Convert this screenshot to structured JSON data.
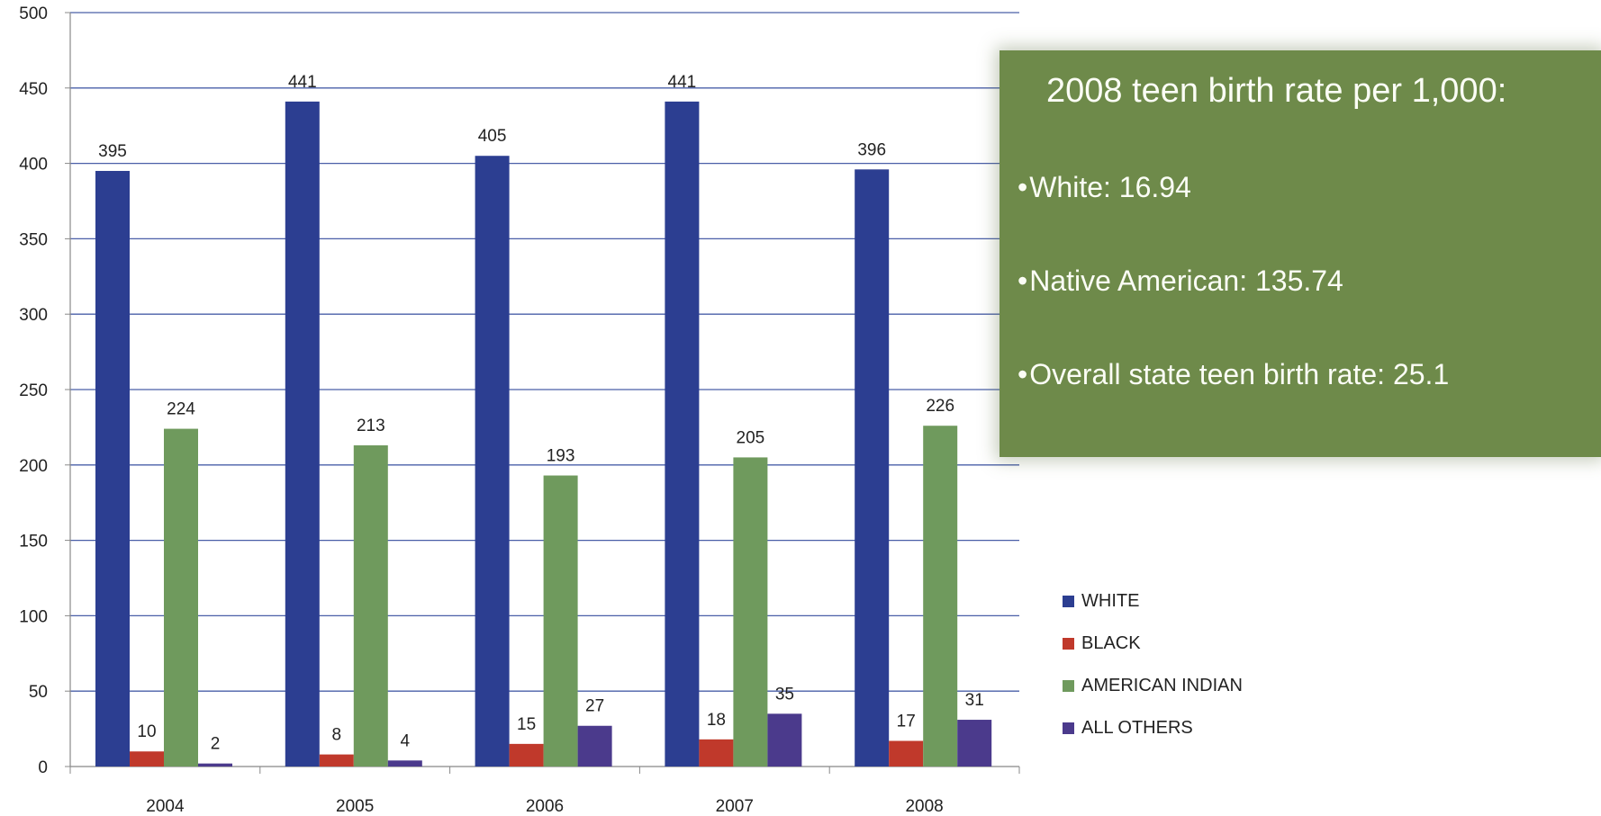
{
  "chart_data": {
    "type": "bar",
    "categories": [
      "2004",
      "2005",
      "2006",
      "2007",
      "2008"
    ],
    "series": [
      {
        "name": "WHITE",
        "color": "#2c3e91",
        "values": [
          395,
          441,
          405,
          441,
          396
        ]
      },
      {
        "name": "BLACK",
        "color": "#c0392b",
        "values": [
          10,
          8,
          15,
          18,
          17
        ]
      },
      {
        "name": "AMERICAN INDIAN",
        "color": "#6f9a5d",
        "values": [
          224,
          213,
          193,
          205,
          226
        ]
      },
      {
        "name": "ALL OTHERS",
        "color": "#4b3a8c",
        "values": [
          2,
          4,
          27,
          35,
          31
        ]
      }
    ],
    "ylim": [
      0,
      500
    ],
    "yticks": [
      0,
      50,
      100,
      150,
      200,
      250,
      300,
      350,
      400,
      450,
      500
    ],
    "grid": true,
    "legend_position": "right",
    "title": "",
    "xlabel": "",
    "ylabel": ""
  },
  "info_box": {
    "title": "2008 teen birth rate per 1,000:",
    "bullet": "•",
    "items": [
      "White:  16.94",
      "Native American:  135.74",
      "Overall state teen birth rate:  25.1"
    ]
  }
}
